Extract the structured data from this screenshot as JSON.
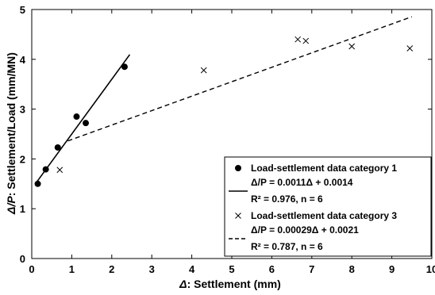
{
  "chart_data": {
    "type": "scatter",
    "xlabel": "Δ: Settlement  (mm)",
    "xlabel_symbol": "Δ",
    "xlabel_rest": ": Settlement  (mm)",
    "ylabel": "Δ/P: Settlement/Load (mm/MN)",
    "ylabel_symbol": "Δ/P",
    "ylabel_rest": ": Settlement/Load (mm/MN)",
    "xlim": [
      0,
      10
    ],
    "ylim": [
      0,
      5
    ],
    "x_ticks": [
      0,
      1,
      2,
      3,
      4,
      5,
      6,
      7,
      8,
      9,
      10
    ],
    "y_ticks": [
      0,
      1,
      2,
      3,
      4,
      5
    ],
    "grid": false,
    "legend_position": "bottom-right",
    "series": [
      {
        "name": "Load-settlement data category 1",
        "marker": "filled-circle",
        "x": [
          0.15,
          0.35,
          0.65,
          1.12,
          1.35,
          2.32
        ],
        "y": [
          1.5,
          1.79,
          2.23,
          2.85,
          2.72,
          3.85
        ],
        "fit": {
          "style": "solid",
          "x_range": [
            0.1,
            2.45
          ],
          "slope": 1.1,
          "intercept": 1.4,
          "equation": "Δ/P = 0.0011Δ + 0.0014",
          "r2": "R² = 0.976, n = 6"
        }
      },
      {
        "name": "Load-settlement data category 3",
        "marker": "x",
        "x": [
          0.7,
          4.3,
          6.65,
          6.85,
          8.0,
          9.45
        ],
        "y": [
          1.78,
          3.78,
          4.4,
          4.37,
          4.26,
          4.22
        ],
        "fit": {
          "style": "dashed",
          "x_range": [
            0.9,
            9.5
          ],
          "slope": 0.29,
          "intercept": 2.1,
          "equation": "Δ/P = 0.00029Δ + 0.0021",
          "r2": "R² = 0.787, n = 6"
        }
      }
    ]
  }
}
